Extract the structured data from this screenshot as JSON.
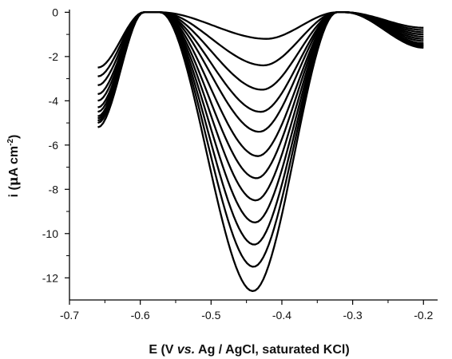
{
  "chart_data": {
    "type": "line",
    "xlabel": "E (V vs. Ag / AgCl, saturated KCl)",
    "xlabel_parts": {
      "pre": "E (V ",
      "italic": "vs.",
      "post": " Ag / AgCl, saturated KCl)"
    },
    "ylabel": "i (µA cm⁻²)",
    "ylabel_parts": {
      "pre": "i (",
      "mu": "μ",
      "unit": "A cm",
      "sup": "-2",
      "post": ")"
    },
    "xlim": [
      -0.7,
      -0.18
    ],
    "ylim": [
      -13.0,
      0.05
    ],
    "xticks": [
      -0.7,
      -0.6,
      -0.5,
      -0.4,
      -0.3,
      -0.2
    ],
    "xtick_labels": [
      "-0.7",
      "-0.6",
      "-0.5",
      "-0.4",
      "-0.3",
      "-0.2"
    ],
    "yticks": [
      0,
      -2,
      -4,
      -6,
      -8,
      -10,
      -12
    ],
    "ytick_labels": [
      "0",
      "-2",
      "-4",
      "-6",
      "-8",
      "-10",
      "-12"
    ],
    "grid": false,
    "line_color": "#000000",
    "x_range": [
      -0.66,
      -0.2
    ],
    "series_params": [
      {
        "peak_i": -1.2,
        "peak_e": -0.422,
        "start_i": -2.5,
        "end_i": -0.7
      },
      {
        "peak_i": -2.4,
        "peak_e": -0.426,
        "start_i": -2.9,
        "end_i": -0.8
      },
      {
        "peak_i": -3.5,
        "peak_e": -0.428,
        "start_i": -3.3,
        "end_i": -0.9
      },
      {
        "peak_i": -4.5,
        "peak_e": -0.43,
        "start_i": -3.7,
        "end_i": -1.0
      },
      {
        "peak_i": -5.4,
        "peak_e": -0.432,
        "start_i": -4.0,
        "end_i": -1.1
      },
      {
        "peak_i": -6.5,
        "peak_e": -0.434,
        "start_i": -4.3,
        "end_i": -1.2
      },
      {
        "peak_i": -7.5,
        "peak_e": -0.436,
        "start_i": -4.5,
        "end_i": -1.3
      },
      {
        "peak_i": -8.5,
        "peak_e": -0.437,
        "start_i": -4.7,
        "end_i": -1.4
      },
      {
        "peak_i": -9.5,
        "peak_e": -0.438,
        "start_i": -4.8,
        "end_i": -1.45
      },
      {
        "peak_i": -10.5,
        "peak_e": -0.439,
        "start_i": -4.9,
        "end_i": -1.5
      },
      {
        "peak_i": -11.5,
        "peak_e": -0.44,
        "start_i": -5.0,
        "end_i": -1.55
      },
      {
        "peak_i": -12.6,
        "peak_e": -0.441,
        "start_i": -5.2,
        "end_i": -1.6
      }
    ]
  }
}
